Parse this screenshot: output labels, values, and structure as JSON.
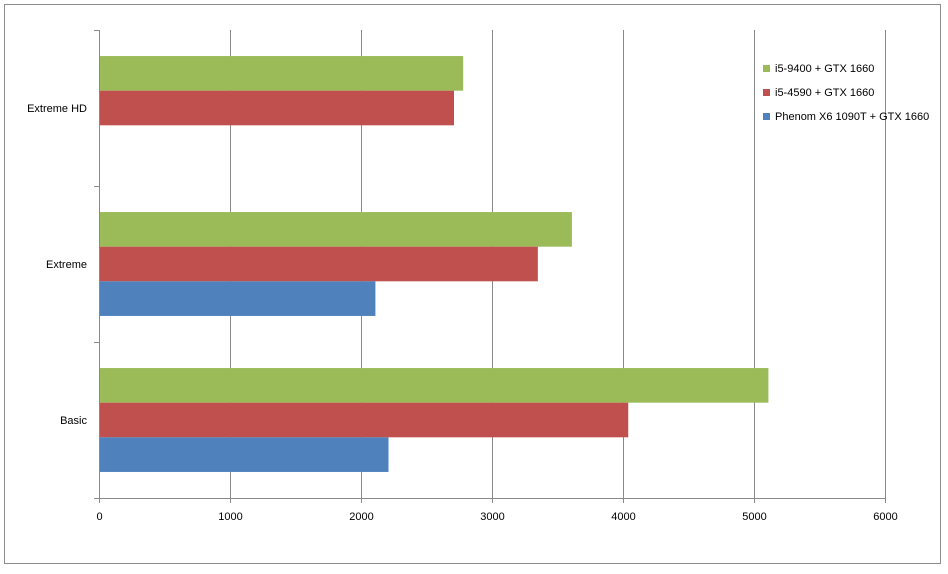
{
  "chart_data": {
    "type": "bar",
    "orientation": "horizontal",
    "title": "",
    "xlabel": "",
    "ylabel": "",
    "categories": [
      "Extreme HD",
      "Extreme",
      "Basic"
    ],
    "series": [
      {
        "name": "i5-9400 + GTX 1660",
        "color": "#9BBB59",
        "values": [
          2780,
          3610,
          5110
        ]
      },
      {
        "name": "i5-4590 + GTX 1660",
        "color": "#C0504D",
        "values": [
          2710,
          3350,
          4040
        ]
      },
      {
        "name": "Phenom X6 1090T + GTX 1660",
        "color": "#4F81BD",
        "values": [
          null,
          2110,
          2210
        ]
      }
    ],
    "xlim": [
      0,
      6000
    ],
    "xticks": [
      "0",
      "1000",
      "2000",
      "3000",
      "4000",
      "5000",
      "6000"
    ],
    "grid": "vertical",
    "legend": "top-right"
  }
}
